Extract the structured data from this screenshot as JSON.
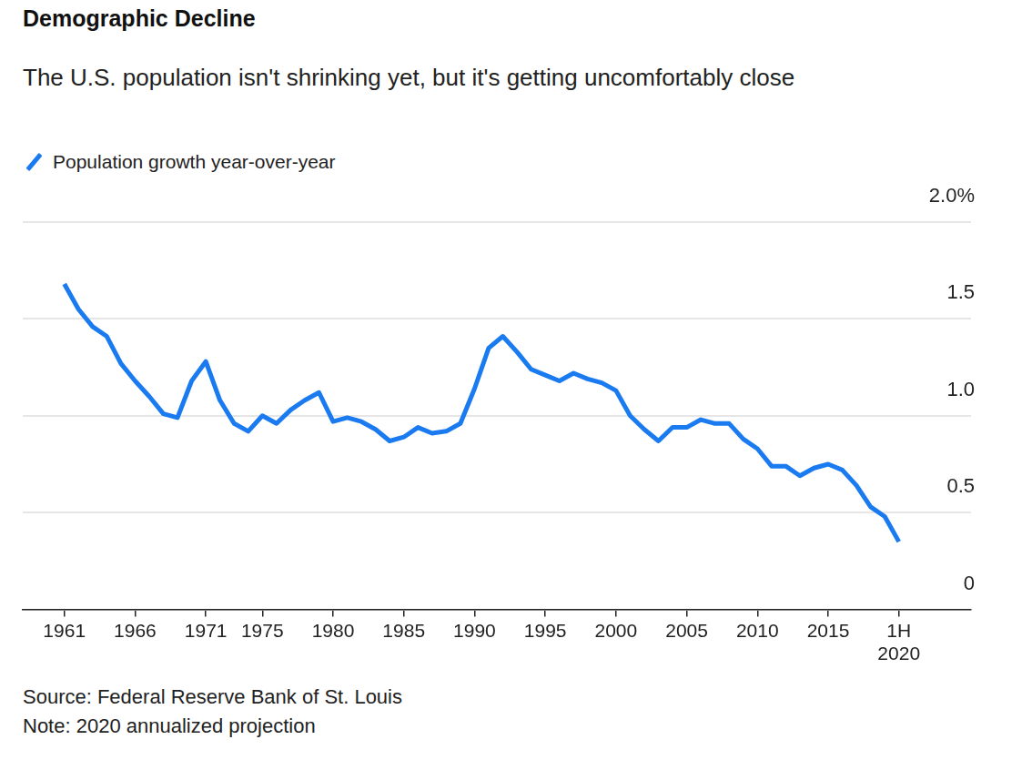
{
  "chart_data": {
    "type": "line",
    "title": "Demographic Decline",
    "subtitle": "The U.S. population isn't shrinking yet, but it's getting uncomfortably close",
    "categories": [
      "1961",
      null,
      null,
      null,
      null,
      "1966",
      null,
      null,
      null,
      null,
      "1971",
      null,
      null,
      null,
      "1975",
      null,
      null,
      null,
      null,
      "1980",
      null,
      null,
      null,
      null,
      "1985",
      null,
      null,
      null,
      null,
      "1990",
      null,
      null,
      null,
      null,
      "1995",
      null,
      null,
      null,
      null,
      "2000",
      null,
      null,
      null,
      null,
      "2005",
      null,
      null,
      null,
      null,
      "2010",
      null,
      null,
      null,
      null,
      "2015",
      null,
      null,
      null,
      null,
      "1H 2020"
    ],
    "series": [
      {
        "name": "Population growth year-over-year",
        "color": "#1a7af0",
        "values": [
          1.68,
          1.55,
          1.46,
          1.41,
          1.27,
          1.18,
          1.1,
          1.01,
          0.99,
          1.18,
          1.28,
          1.08,
          0.96,
          0.92,
          1.0,
          0.96,
          1.03,
          1.08,
          1.12,
          0.97,
          0.99,
          0.97,
          0.93,
          0.87,
          0.89,
          0.94,
          0.91,
          0.92,
          0.96,
          1.14,
          1.35,
          1.41,
          1.33,
          1.24,
          1.21,
          1.18,
          1.22,
          1.19,
          1.17,
          1.13,
          1.0,
          0.93,
          0.87,
          0.94,
          0.94,
          0.98,
          0.96,
          0.96,
          0.88,
          0.83,
          0.74,
          0.74,
          0.69,
          0.73,
          0.75,
          0.72,
          0.64,
          0.53,
          0.48,
          0.35
        ]
      }
    ],
    "ylim": [
      0,
      2
    ],
    "yticks": [
      0,
      0.5,
      {
        "value": 1,
        "label": "1.0"
      },
      1.5,
      {
        "value": 2,
        "label": "2.0%"
      }
    ],
    "grid": true,
    "legend": "top-left",
    "annotations": [
      "Source: Federal Reserve Bank of St. Louis",
      "Note: 2020 annualized projection"
    ]
  }
}
